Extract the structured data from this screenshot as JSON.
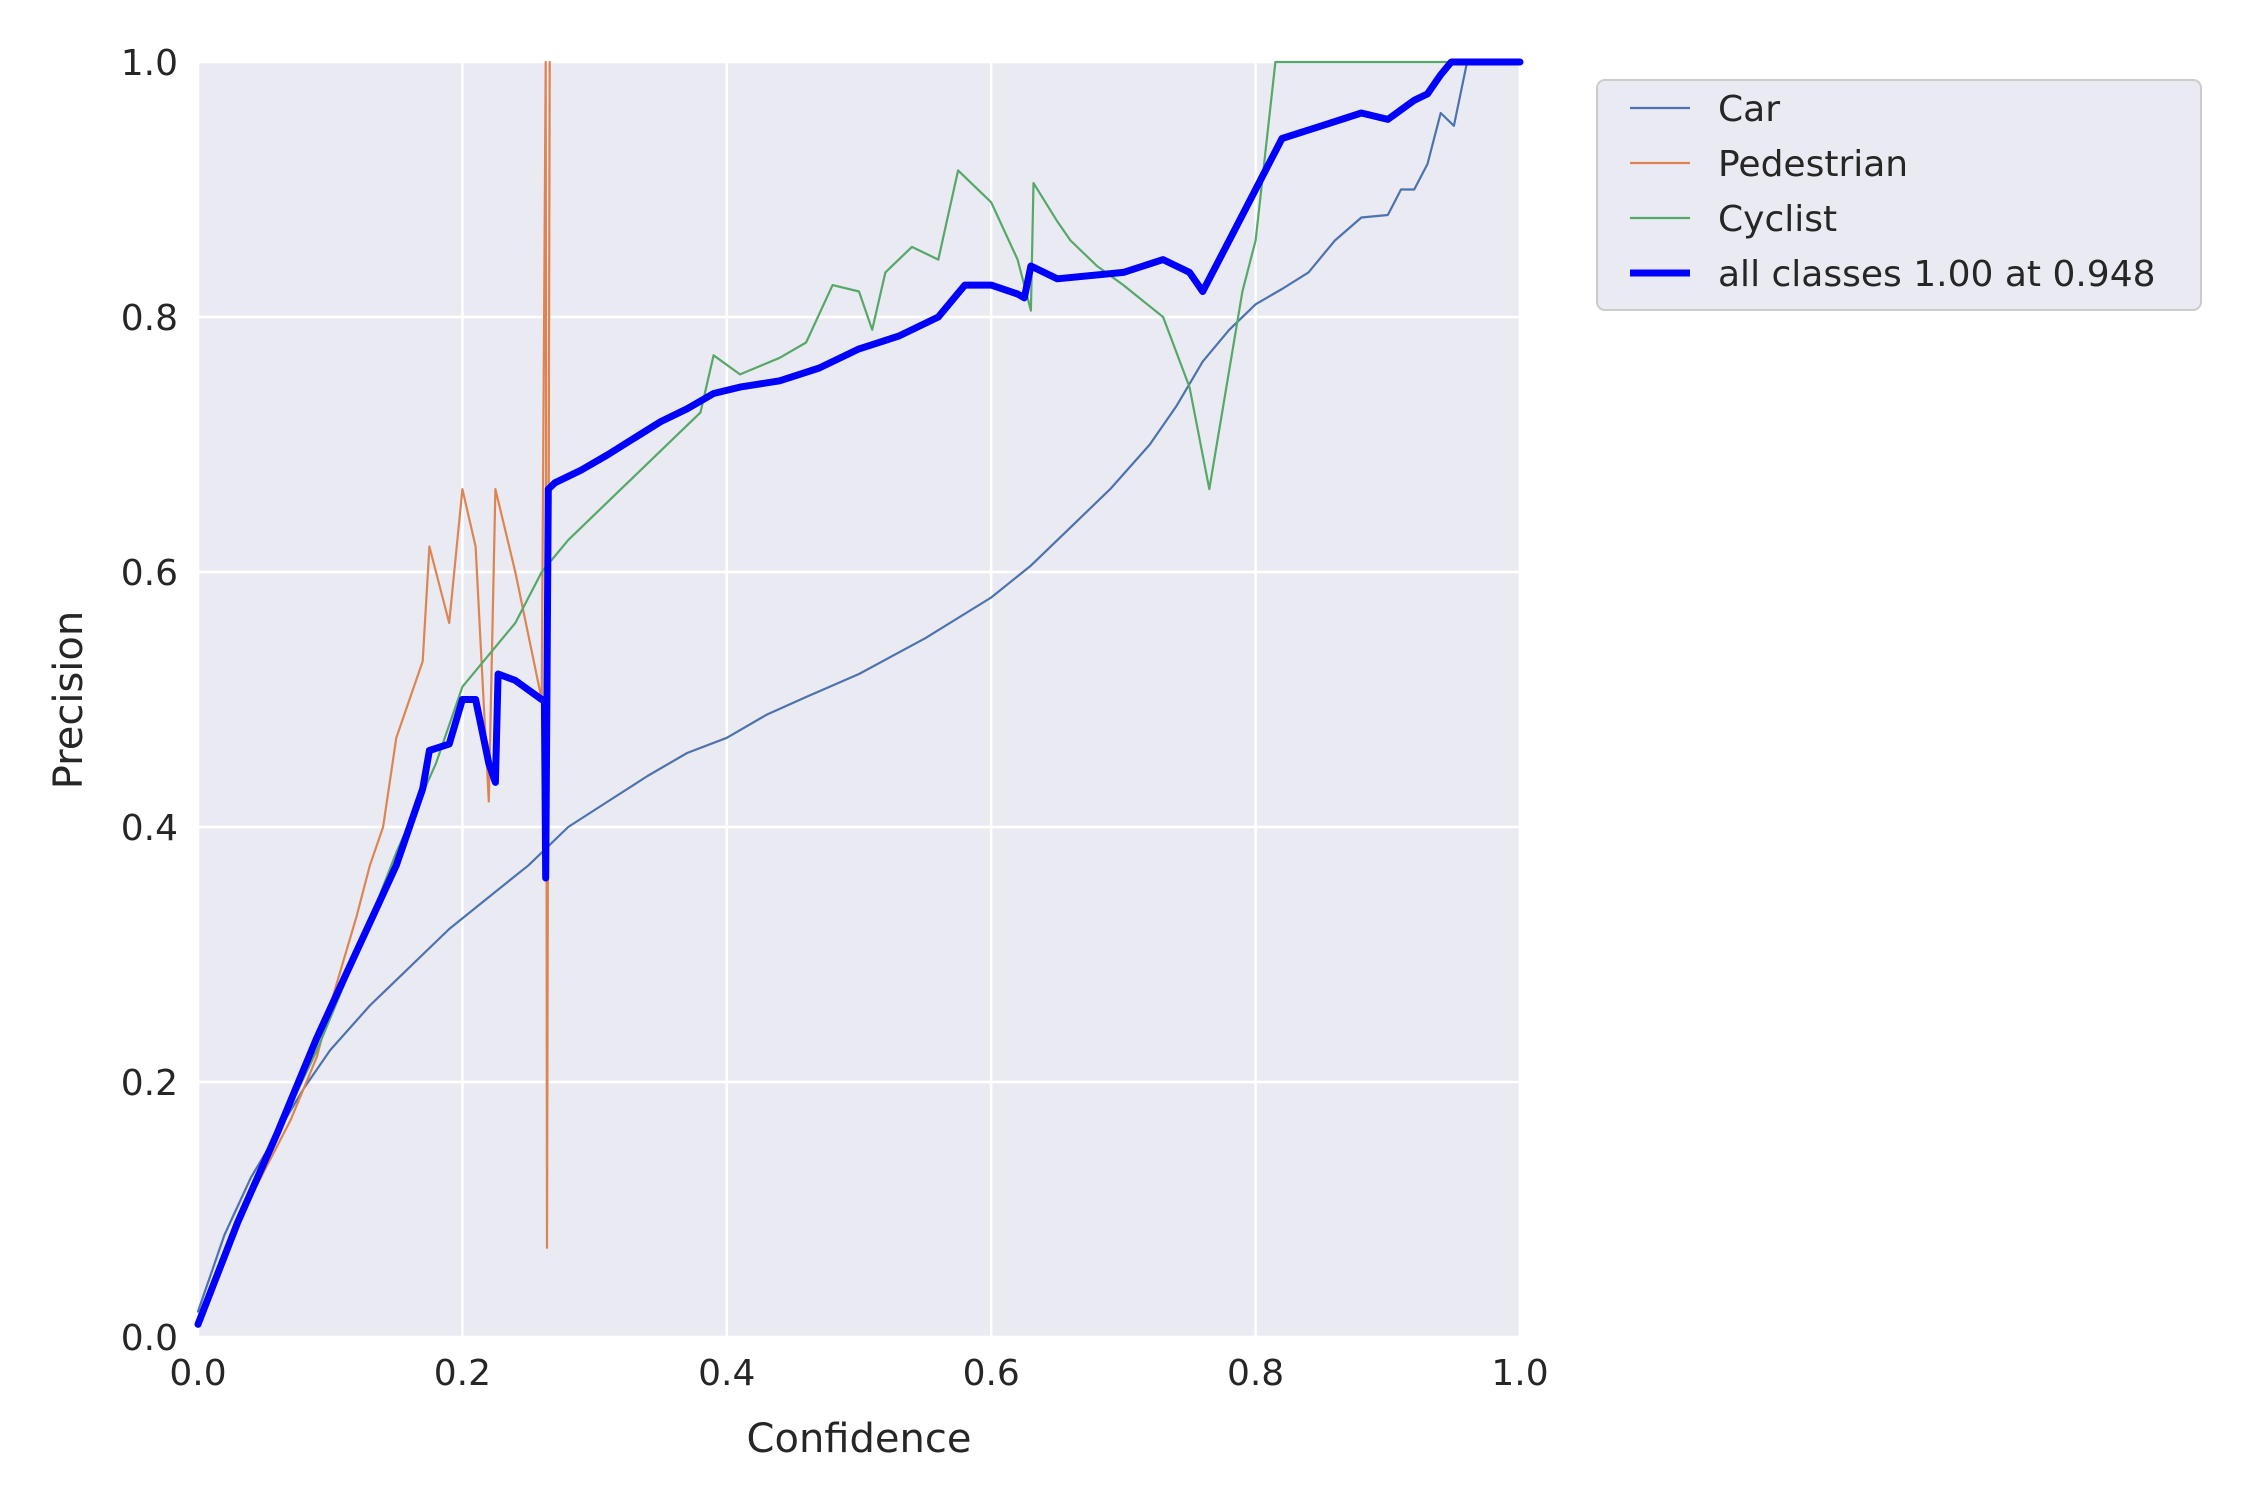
{
  "chart_data": {
    "type": "line",
    "xlabel": "Confidence",
    "ylabel": "Precision",
    "xlim": [
      0,
      1
    ],
    "ylim": [
      0,
      1
    ],
    "xticks": [
      "0.0",
      "0.2",
      "0.4",
      "0.6",
      "0.8",
      "1.0"
    ],
    "yticks": [
      "0.0",
      "0.2",
      "0.4",
      "0.6",
      "0.8",
      "1.0"
    ],
    "grid": true,
    "legend_position": "outside-top-right",
    "series": [
      {
        "name": "Car",
        "color": "#4c72b0",
        "width": "thin",
        "points": [
          [
            0,
            0.02
          ],
          [
            0.02,
            0.08
          ],
          [
            0.04,
            0.125
          ],
          [
            0.06,
            0.16
          ],
          [
            0.08,
            0.195
          ],
          [
            0.1,
            0.225
          ],
          [
            0.13,
            0.26
          ],
          [
            0.16,
            0.29
          ],
          [
            0.19,
            0.32
          ],
          [
            0.22,
            0.345
          ],
          [
            0.25,
            0.37
          ],
          [
            0.28,
            0.4
          ],
          [
            0.31,
            0.42
          ],
          [
            0.34,
            0.44
          ],
          [
            0.37,
            0.458
          ],
          [
            0.4,
            0.47
          ],
          [
            0.43,
            0.488
          ],
          [
            0.46,
            0.502
          ],
          [
            0.5,
            0.52
          ],
          [
            0.55,
            0.548
          ],
          [
            0.6,
            0.58
          ],
          [
            0.63,
            0.605
          ],
          [
            0.66,
            0.635
          ],
          [
            0.69,
            0.665
          ],
          [
            0.72,
            0.7
          ],
          [
            0.74,
            0.73
          ],
          [
            0.76,
            0.765
          ],
          [
            0.78,
            0.79
          ],
          [
            0.8,
            0.81
          ],
          [
            0.82,
            0.822
          ],
          [
            0.84,
            0.835
          ],
          [
            0.86,
            0.86
          ],
          [
            0.88,
            0.878
          ],
          [
            0.9,
            0.88
          ],
          [
            0.91,
            0.9
          ],
          [
            0.92,
            0.9
          ],
          [
            0.93,
            0.92
          ],
          [
            0.94,
            0.96
          ],
          [
            0.95,
            0.95
          ],
          [
            0.96,
            1.0
          ],
          [
            1.0,
            1.0
          ]
        ]
      },
      {
        "name": "Pedestrian",
        "color": "#dd8452",
        "width": "thin",
        "points": [
          [
            0,
            0.01
          ],
          [
            0.03,
            0.09
          ],
          [
            0.05,
            0.13
          ],
          [
            0.07,
            0.17
          ],
          [
            0.09,
            0.22
          ],
          [
            0.1,
            0.26
          ],
          [
            0.12,
            0.33
          ],
          [
            0.13,
            0.37
          ],
          [
            0.14,
            0.4
          ],
          [
            0.15,
            0.47
          ],
          [
            0.16,
            0.5
          ],
          [
            0.17,
            0.53
          ],
          [
            0.175,
            0.62
          ],
          [
            0.18,
            0.6
          ],
          [
            0.19,
            0.56
          ],
          [
            0.2,
            0.665
          ],
          [
            0.21,
            0.62
          ],
          [
            0.22,
            0.42
          ],
          [
            0.225,
            0.665
          ],
          [
            0.24,
            0.6
          ],
          [
            0.26,
            0.5
          ],
          [
            0.263,
            1.0
          ],
          [
            0.264,
            0.07
          ],
          [
            0.266,
            1.0
          ]
        ]
      },
      {
        "name": "Cyclist",
        "color": "#55a868",
        "width": "thin",
        "points": [
          [
            0,
            0.01
          ],
          [
            0.03,
            0.09
          ],
          [
            0.06,
            0.16
          ],
          [
            0.09,
            0.225
          ],
          [
            0.12,
            0.3
          ],
          [
            0.15,
            0.38
          ],
          [
            0.18,
            0.45
          ],
          [
            0.2,
            0.51
          ],
          [
            0.22,
            0.535
          ],
          [
            0.24,
            0.56
          ],
          [
            0.26,
            0.6
          ],
          [
            0.28,
            0.625
          ],
          [
            0.3,
            0.645
          ],
          [
            0.32,
            0.665
          ],
          [
            0.34,
            0.685
          ],
          [
            0.36,
            0.705
          ],
          [
            0.38,
            0.725
          ],
          [
            0.39,
            0.77
          ],
          [
            0.41,
            0.755
          ],
          [
            0.44,
            0.768
          ],
          [
            0.46,
            0.78
          ],
          [
            0.48,
            0.825
          ],
          [
            0.5,
            0.82
          ],
          [
            0.51,
            0.79
          ],
          [
            0.52,
            0.835
          ],
          [
            0.54,
            0.855
          ],
          [
            0.56,
            0.845
          ],
          [
            0.575,
            0.915
          ],
          [
            0.6,
            0.89
          ],
          [
            0.62,
            0.845
          ],
          [
            0.63,
            0.805
          ],
          [
            0.632,
            0.905
          ],
          [
            0.65,
            0.875
          ],
          [
            0.66,
            0.86
          ],
          [
            0.68,
            0.84
          ],
          [
            0.7,
            0.825
          ],
          [
            0.73,
            0.8
          ],
          [
            0.75,
            0.745
          ],
          [
            0.765,
            0.665
          ],
          [
            0.79,
            0.82
          ],
          [
            0.8,
            0.86
          ],
          [
            0.815,
            1.0
          ],
          [
            1.0,
            1.0
          ]
        ]
      },
      {
        "name": "all classes 1.00 at 0.948",
        "color": "#0000ff",
        "width": "thick",
        "points": [
          [
            0,
            0.01
          ],
          [
            0.03,
            0.09
          ],
          [
            0.06,
            0.16
          ],
          [
            0.09,
            0.235
          ],
          [
            0.11,
            0.28
          ],
          [
            0.13,
            0.325
          ],
          [
            0.15,
            0.37
          ],
          [
            0.16,
            0.4
          ],
          [
            0.17,
            0.43
          ],
          [
            0.175,
            0.46
          ],
          [
            0.19,
            0.465
          ],
          [
            0.2,
            0.5
          ],
          [
            0.21,
            0.5
          ],
          [
            0.22,
            0.45
          ],
          [
            0.225,
            0.435
          ],
          [
            0.227,
            0.52
          ],
          [
            0.24,
            0.515
          ],
          [
            0.26,
            0.5
          ],
          [
            0.262,
            0.5
          ],
          [
            0.263,
            0.36
          ],
          [
            0.265,
            0.665
          ],
          [
            0.27,
            0.67
          ],
          [
            0.29,
            0.68
          ],
          [
            0.31,
            0.692
          ],
          [
            0.33,
            0.705
          ],
          [
            0.35,
            0.718
          ],
          [
            0.37,
            0.728
          ],
          [
            0.39,
            0.74
          ],
          [
            0.41,
            0.745
          ],
          [
            0.44,
            0.75
          ],
          [
            0.47,
            0.76
          ],
          [
            0.5,
            0.775
          ],
          [
            0.53,
            0.785
          ],
          [
            0.56,
            0.8
          ],
          [
            0.58,
            0.825
          ],
          [
            0.6,
            0.825
          ],
          [
            0.62,
            0.818
          ],
          [
            0.625,
            0.815
          ],
          [
            0.63,
            0.84
          ],
          [
            0.65,
            0.83
          ],
          [
            0.7,
            0.835
          ],
          [
            0.73,
            0.845
          ],
          [
            0.75,
            0.835
          ],
          [
            0.76,
            0.82
          ],
          [
            0.78,
            0.86
          ],
          [
            0.8,
            0.9
          ],
          [
            0.82,
            0.94
          ],
          [
            0.85,
            0.95
          ],
          [
            0.88,
            0.96
          ],
          [
            0.9,
            0.955
          ],
          [
            0.92,
            0.97
          ],
          [
            0.93,
            0.975
          ],
          [
            0.94,
            0.99
          ],
          [
            0.948,
            1.0
          ],
          [
            1.0,
            1.0
          ]
        ]
      }
    ]
  }
}
